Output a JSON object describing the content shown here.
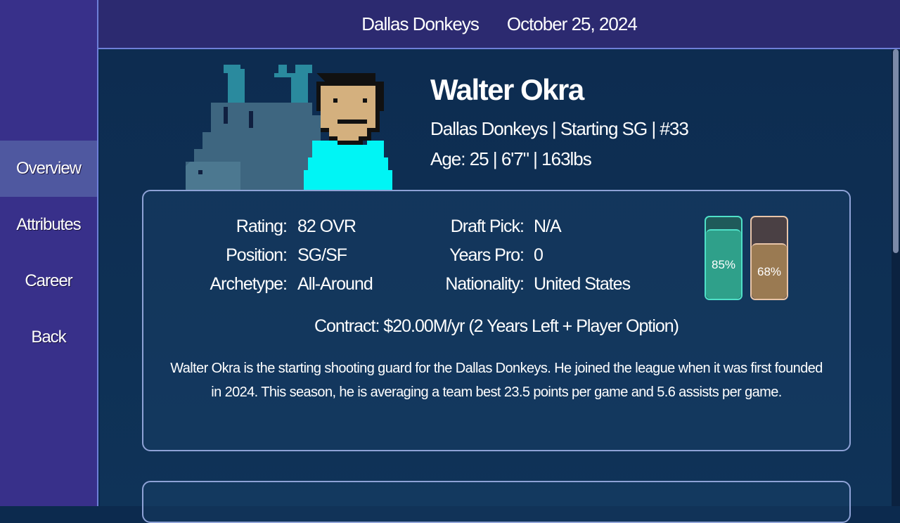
{
  "sidebar": {
    "items": [
      {
        "label": "Overview",
        "active": true
      },
      {
        "label": "Attributes"
      },
      {
        "label": "Career"
      },
      {
        "label": "Back"
      }
    ]
  },
  "header": {
    "team": "Dallas Donkeys",
    "date": "October 25, 2024"
  },
  "player": {
    "name": "Walter Okra",
    "line1": "Dallas Donkeys  |  Starting SG  |  #33",
    "line2": "Age: 25  |  6'7\"  |  163lbs"
  },
  "details": {
    "left": [
      {
        "label": "Rating:",
        "value": "82 OVR"
      },
      {
        "label": "Position:",
        "value": "SG/SF"
      },
      {
        "label": "Archetype:",
        "value": "All-Around"
      }
    ],
    "right": [
      {
        "label": "Draft Pick:",
        "value": "N/A"
      },
      {
        "label": "Years Pro:",
        "value": "0"
      },
      {
        "label": "Nationality:",
        "value": "United States"
      }
    ]
  },
  "meters": [
    {
      "label": "85%",
      "value": 85,
      "color": "#2fa08a",
      "track": "#1f5a5a",
      "border": "#4fe0c8"
    },
    {
      "label": "68%",
      "value": 68,
      "color": "#9a7a52",
      "track": "#4a4044",
      "border": "#e8c4a8"
    }
  ],
  "contract": "Contract: $20.00M/yr (2 Years Left + Player Option)",
  "bio": "Walter Okra is the starting shooting guard for the Dallas Donkeys. He joined the league when it was first founded in 2024. This season, he is averaging a team best 23.5 points per game and 5.6 assists per game."
}
